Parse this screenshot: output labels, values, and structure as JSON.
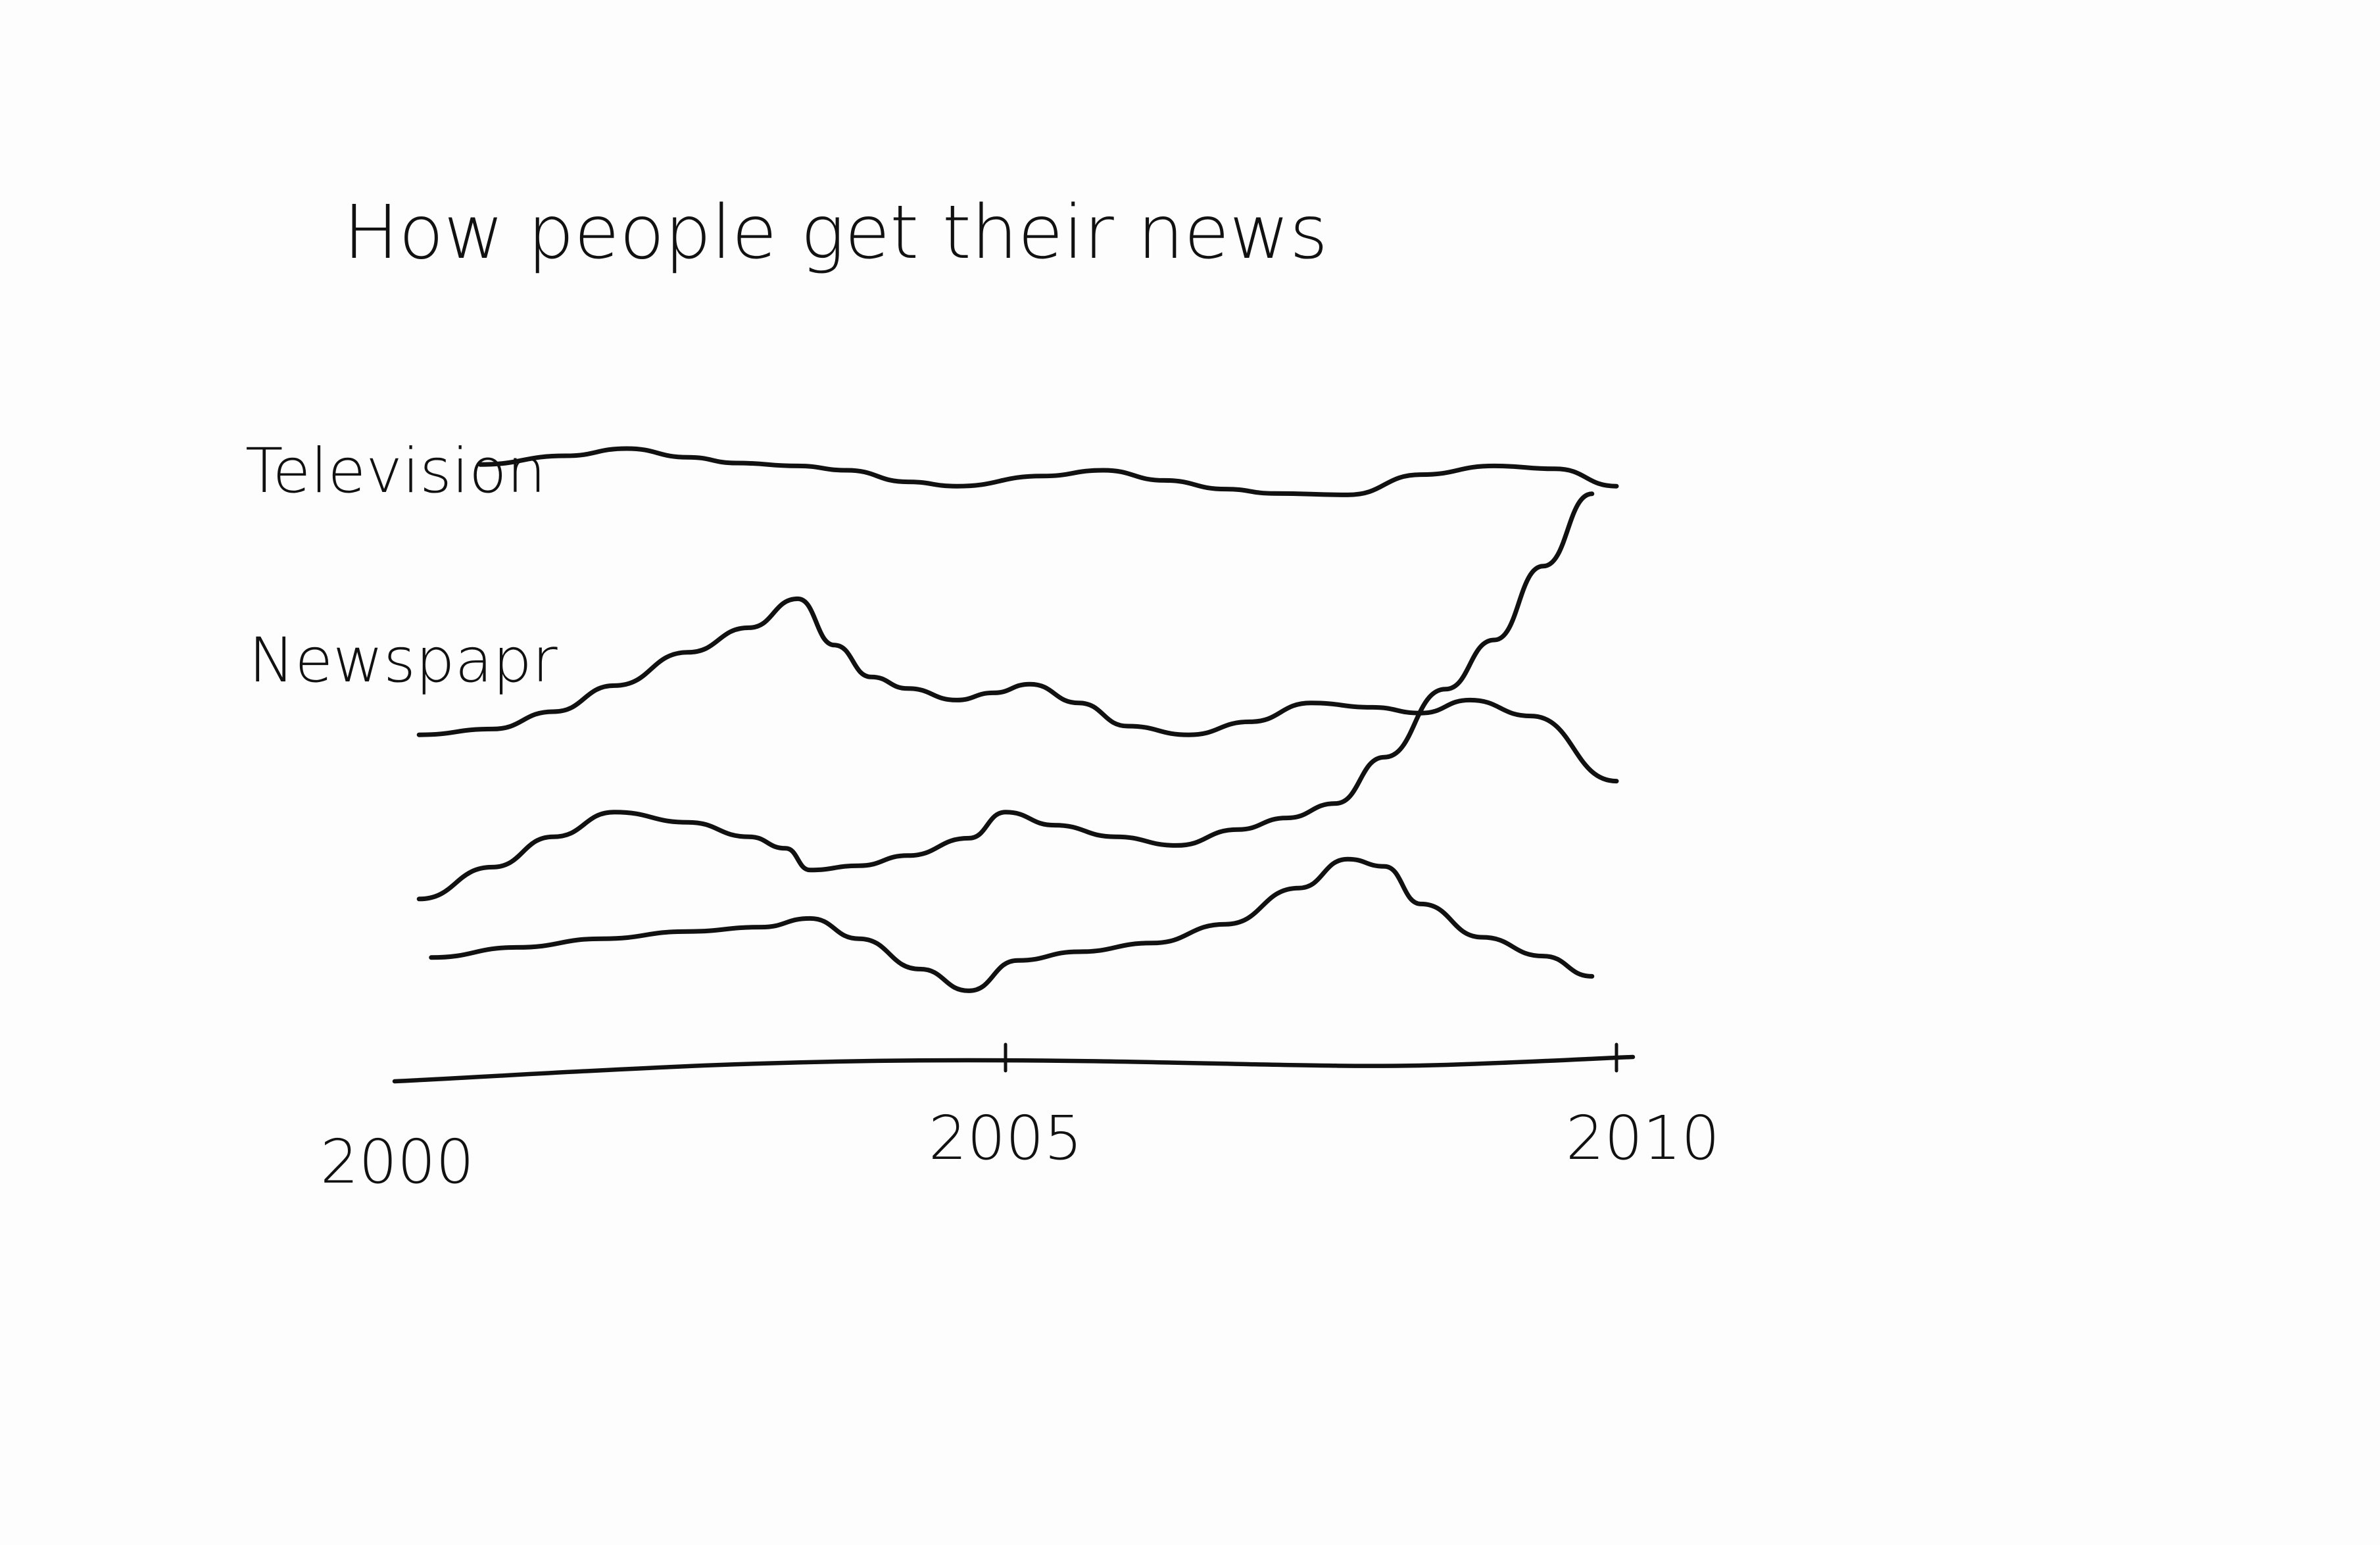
{
  "chart_data": {
    "type": "line",
    "title": "How people get their news",
    "xlabel": "",
    "ylabel": "",
    "x_ticks": [
      "2000",
      "2005",
      "2010"
    ],
    "xlim": [
      2000,
      2010
    ],
    "grid": false,
    "style": "hand-drawn sketch, stacked sparklines, no y axis",
    "series": [
      {
        "name": "Television",
        "x": [
          2000.7,
          2001.4,
          2001.9,
          2002.4,
          2002.8,
          2003.3,
          2003.7,
          2004.2,
          2004.6,
          2005.3,
          2005.8,
          2006.3,
          2006.8,
          2007.2,
          2007.8,
          2008.4,
          2009.0,
          2009.5,
          2010.0
        ],
        "values": [
          0.9,
          1.5,
          2.0,
          1.4,
          1.0,
          0.8,
          0.5,
          -0.3,
          -0.6,
          0.1,
          0.5,
          -0.2,
          -0.8,
          -1.1,
          -1.2,
          0.2,
          0.8,
          0.6,
          -0.6
        ]
      },
      {
        "name": "Newspapr",
        "x": [
          2000.2,
          2000.8,
          2001.3,
          2001.8,
          2002.4,
          2002.9,
          2003.3,
          2003.6,
          2003.9,
          2004.2,
          2004.6,
          2004.9,
          2005.2,
          2005.6,
          2006.0,
          2006.5,
          2007.0,
          2007.5,
          2008.0,
          2008.4,
          2008.8,
          2009.3,
          2010.0
        ],
        "values": [
          -0.6,
          -0.2,
          1.0,
          2.8,
          5.1,
          6.8,
          8.8,
          5.6,
          3.4,
          2.6,
          1.8,
          2.3,
          2.9,
          1.6,
          0.0,
          -0.6,
          0.3,
          1.6,
          1.3,
          0.9,
          1.8,
          0.7,
          -3.8
        ]
      },
      {
        "name": "",
        "x": [
          2000.2,
          2000.8,
          2001.3,
          2001.8,
          2002.4,
          2002.9,
          2003.2,
          2003.4,
          2003.8,
          2004.2,
          2004.7,
          2005.0,
          2005.4,
          2005.9,
          2006.4,
          2006.9,
          2007.3,
          2007.7,
          2008.1,
          2008.6,
          2009.0,
          2009.4,
          2009.8
        ],
        "values": [
          -3.4,
          -1.2,
          0.9,
          2.6,
          1.9,
          0.9,
          0.1,
          -1.4,
          -1.1,
          -0.4,
          0.8,
          2.6,
          1.7,
          0.9,
          0.3,
          1.4,
          2.2,
          3.2,
          6.4,
          11.1,
          14.5,
          19.6,
          24.6
        ]
      },
      {
        "name": "",
        "x": [
          2000.3,
          2001.0,
          2001.7,
          2002.4,
          2003.0,
          2003.4,
          2003.8,
          2004.3,
          2004.7,
          2005.1,
          2005.6,
          2006.2,
          2006.8,
          2007.4,
          2007.8,
          2008.1,
          2008.4,
          2008.9,
          2009.4,
          2009.8
        ],
        "values": [
          1.1,
          1.8,
          2.4,
          2.9,
          3.2,
          3.8,
          2.4,
          0.3,
          -1.2,
          0.9,
          1.5,
          2.1,
          3.4,
          5.9,
          7.9,
          7.4,
          4.8,
          2.5,
          1.2,
          -0.2
        ]
      }
    ]
  }
}
